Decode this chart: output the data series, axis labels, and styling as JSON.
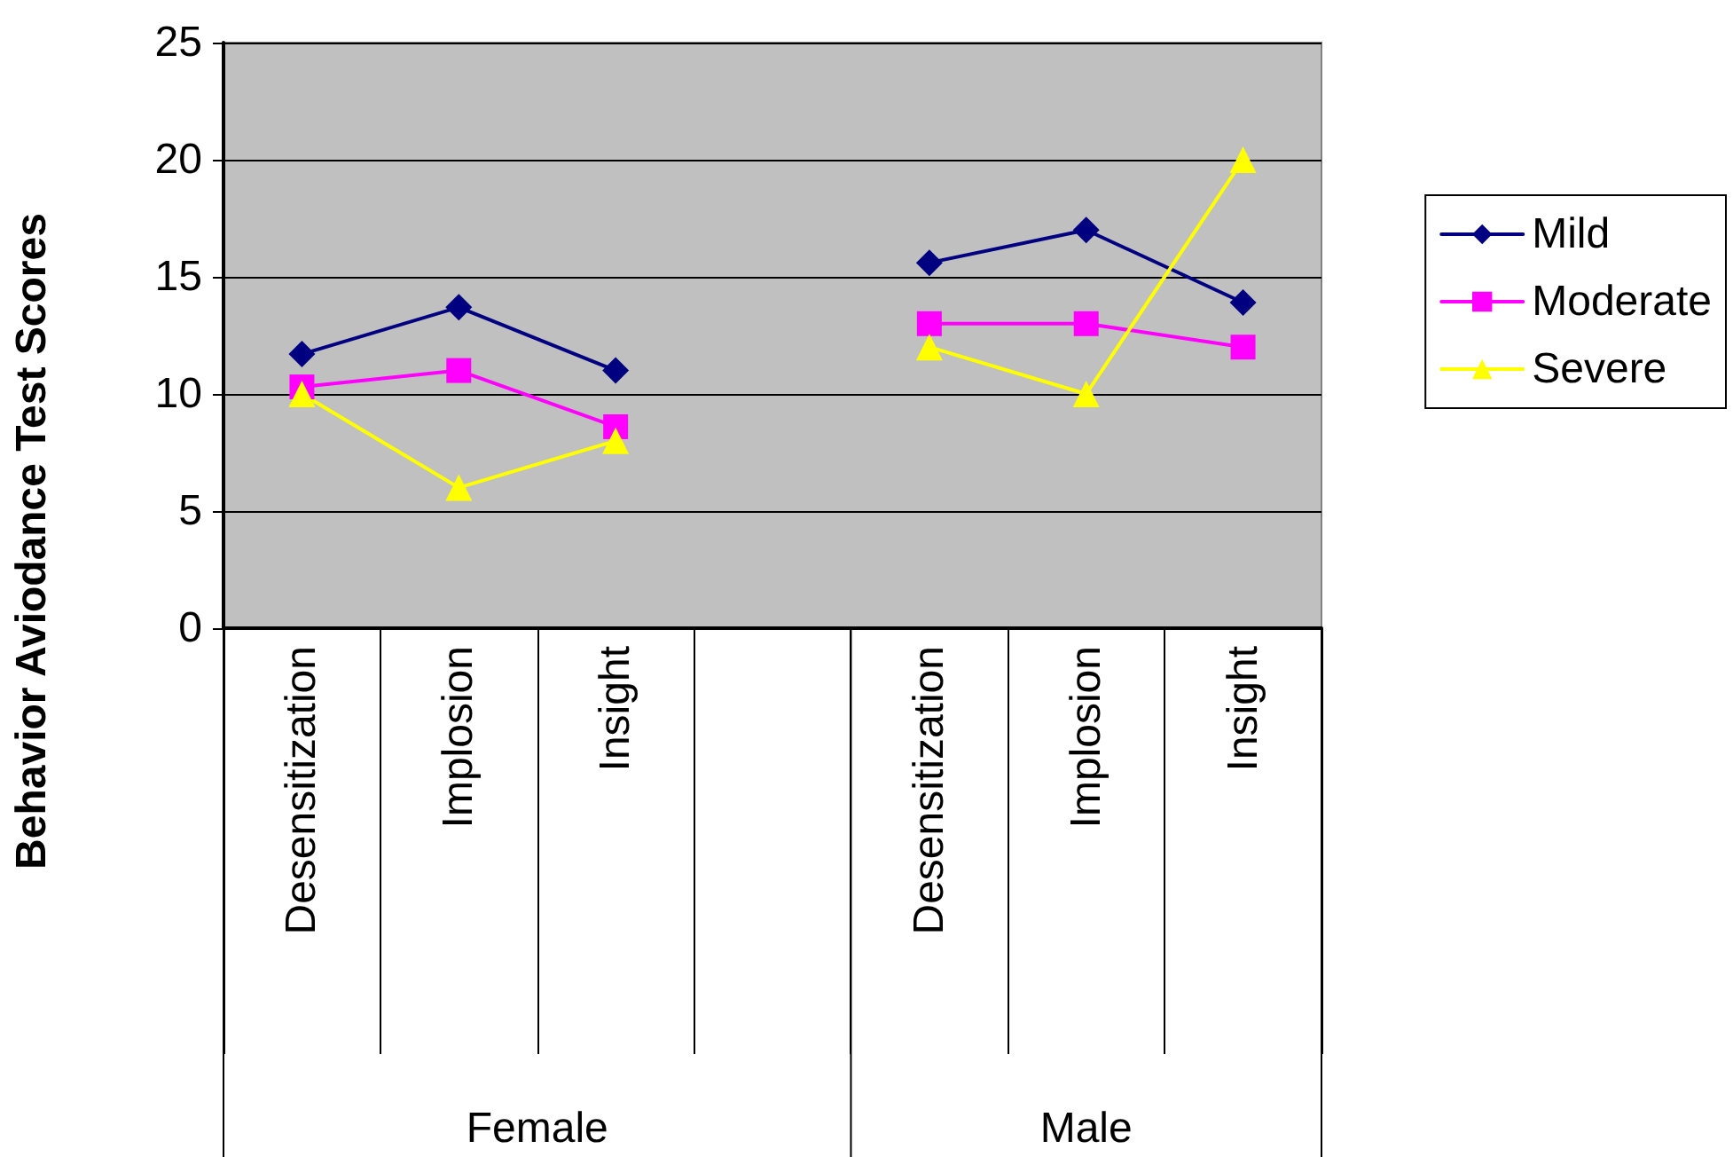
{
  "chart_data": {
    "type": "line",
    "ylabel": "Behavior Aviodance Test Scores",
    "categories": [
      "Desensitization",
      "Implosion",
      "Insight",
      null,
      "Desensitization",
      "Implosion",
      "Insight"
    ],
    "annotations": [
      "Female",
      "Male"
    ],
    "series": [
      {
        "name": "Mild",
        "color": "#000080",
        "marker": "diamond",
        "values": [
          11.7,
          13.7,
          11.0,
          null,
          15.6,
          17.0,
          13.9
        ]
      },
      {
        "name": "Moderate",
        "color": "#ff00ff",
        "marker": "square",
        "values": [
          10.3,
          11.0,
          8.6,
          null,
          13.0,
          13.0,
          12.0
        ]
      },
      {
        "name": "Severe",
        "color": "#ffff00",
        "marker": "triangle",
        "values": [
          10.0,
          6.0,
          8.0,
          null,
          12.0,
          10.0,
          20.0
        ]
      }
    ],
    "ylim": [
      0,
      25
    ],
    "yticks": [
      0,
      5,
      10,
      15,
      20,
      25
    ],
    "grid": "y",
    "legend": "right",
    "line_style": "solid"
  }
}
